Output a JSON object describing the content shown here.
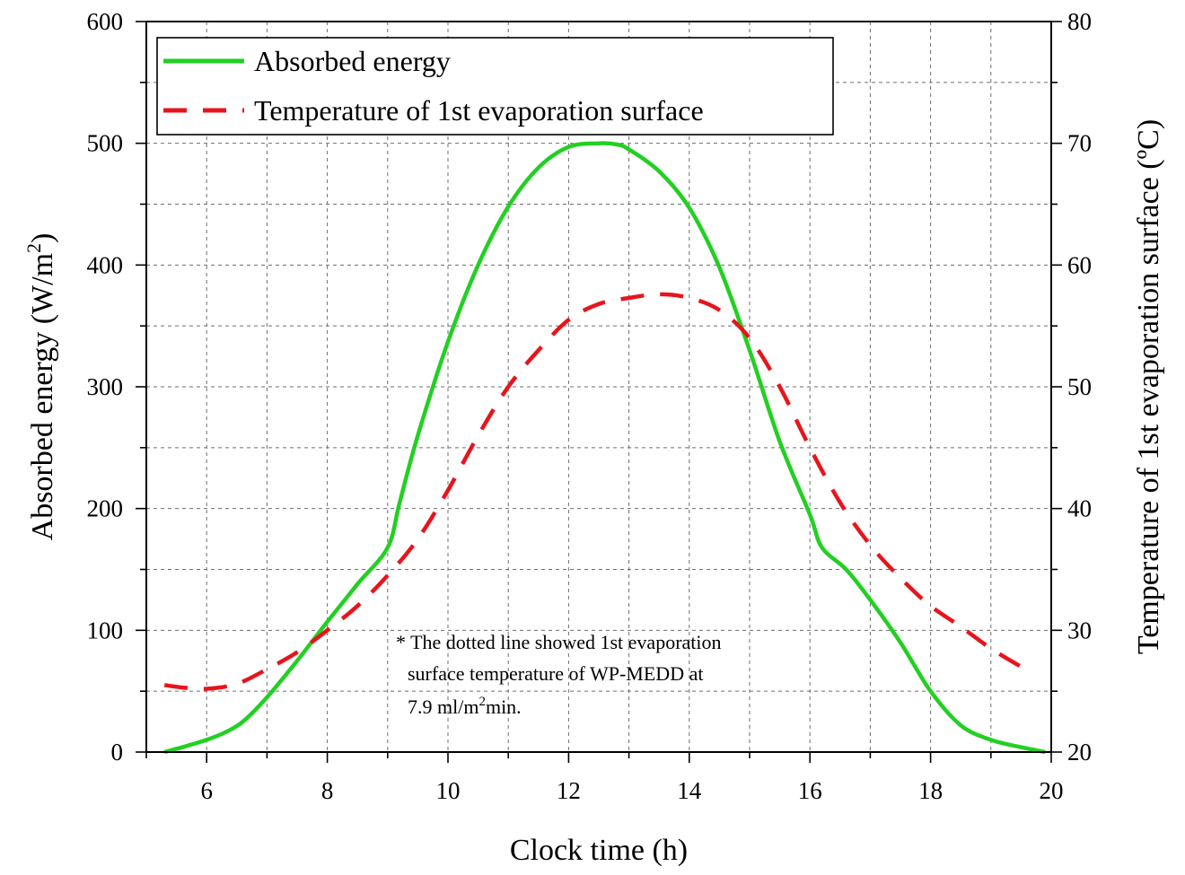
{
  "chart_data": {
    "type": "line",
    "x_axis": {
      "label": "Clock time (h)",
      "range": [
        5,
        20
      ],
      "ticks": [
        6,
        8,
        10,
        12,
        14,
        16,
        18,
        20
      ],
      "minor_step": 1
    },
    "y_left": {
      "label": "Absorbed energy (W/m",
      "label_sup": "2",
      "label_end": ")",
      "range": [
        0,
        600
      ],
      "ticks": [
        0,
        100,
        200,
        300,
        400,
        500,
        600
      ],
      "minor_step": 50
    },
    "y_right": {
      "label": "Temperature of 1st evaporation surface (ºC)",
      "range": [
        20,
        80
      ],
      "ticks": [
        20,
        30,
        40,
        50,
        60,
        70,
        80
      ],
      "minor_step": 5
    },
    "grid": true,
    "legend_position": "top-left",
    "series": [
      {
        "name": "Absorbed energy",
        "axis": "left",
        "color": "#22d022",
        "style": "solid",
        "x": [
          5.3,
          5.6,
          6.0,
          6.3,
          6.6,
          7.0,
          7.5,
          8.0,
          8.5,
          9.0,
          9.2,
          9.5,
          10.0,
          10.5,
          11.0,
          11.5,
          12.0,
          12.5,
          12.8,
          13.0,
          13.5,
          14.0,
          14.5,
          15.0,
          15.5,
          16.0,
          16.2,
          16.6,
          17.0,
          17.5,
          18.0,
          18.5,
          19.0,
          19.5,
          19.9
        ],
        "y": [
          0,
          4,
          10,
          16,
          25,
          45,
          75,
          107,
          138,
          168,
          205,
          260,
          337,
          400,
          448,
          480,
          497,
          500,
          499,
          495,
          477,
          447,
          398,
          330,
          255,
          195,
          168,
          150,
          125,
          90,
          50,
          22,
          10,
          4,
          0
        ]
      },
      {
        "name": "Temperature of 1st evaporation surface",
        "axis": "right",
        "color": "#e8141c",
        "style": "dashed",
        "x": [
          5.3,
          5.6,
          6.0,
          6.5,
          7.0,
          7.5,
          8.0,
          8.5,
          9.0,
          9.5,
          10.0,
          10.5,
          11.0,
          11.5,
          12.0,
          12.5,
          13.0,
          13.5,
          14.0,
          14.5,
          15.0,
          15.5,
          16.0,
          16.5,
          17.0,
          17.5,
          18.0,
          18.5,
          19.0,
          19.5
        ],
        "y": [
          25.5,
          25.3,
          25.2,
          25.6,
          26.8,
          28.2,
          30.0,
          32.0,
          34.5,
          37.5,
          41.5,
          46.0,
          50.0,
          53.0,
          55.5,
          56.8,
          57.3,
          57.6,
          57.3,
          56.3,
          54.0,
          50.0,
          45.0,
          40.5,
          37.0,
          34.3,
          32.0,
          30.3,
          28.5,
          27.0
        ]
      }
    ],
    "annotation": {
      "line1": "* The dotted line showed 1st evaporation",
      "line2": "surface temperature of WP-MEDD at",
      "line3_pre": "7.9 ml/m",
      "line3_sup": "2",
      "line3_post": "min."
    }
  }
}
